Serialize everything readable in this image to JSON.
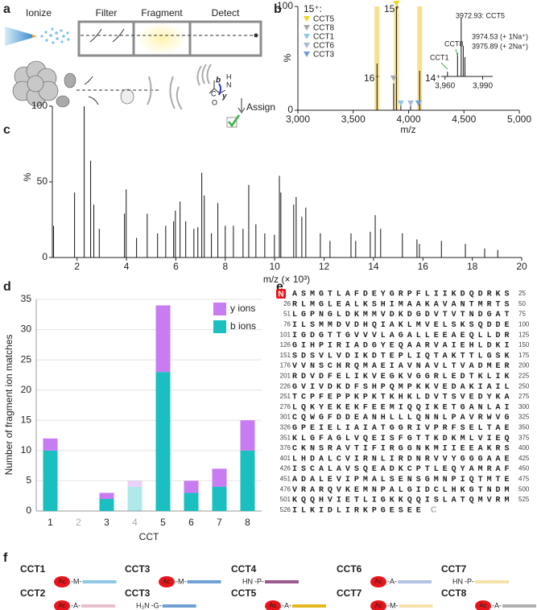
{
  "panel_labels": [
    "a",
    "b",
    "c",
    "d",
    "e",
    "f"
  ],
  "schematic": {
    "steps": [
      "Ionize",
      "Filter",
      "Fragment",
      "Detect"
    ],
    "assign": "Assign",
    "ion_labels": [
      "b",
      "y"
    ],
    "atoms": [
      "C",
      "O",
      "N",
      "H"
    ]
  },
  "chart_data": [
    {
      "type": "spectrum",
      "xlabel": "m/z",
      "ylabel": "%",
      "xlim": [
        3000,
        5000
      ],
      "ylim": [
        0,
        100
      ],
      "xticks": [
        {
          "value": 3000,
          "label": "3,000"
        },
        {
          "value": 3500,
          "label": "3,500"
        },
        {
          "value": 4000,
          "label": "4,000"
        },
        {
          "value": 4500,
          "label": "4,500"
        },
        {
          "value": 5000,
          "label": "5,000"
        }
      ],
      "yticks": [
        0,
        100
      ],
      "x": [
        3715,
        3865,
        3890,
        3930,
        4018,
        4100
      ],
      "values": [
        45,
        26,
        100,
        6,
        5,
        38
      ],
      "highlight_color": "#f7e08e",
      "annotations": [
        {
          "text": "16⁺",
          "x": 3715
        },
        {
          "text": "15⁺",
          "x": 3890
        },
        {
          "text": "14⁺",
          "x": 4100
        }
      ],
      "markers_title": "15⁺:",
      "series": [
        {
          "name": "CCT5",
          "color": "#f2d21a",
          "x": [
            3890
          ],
          "values": [
            100
          ]
        },
        {
          "name": "CCT8",
          "color": "#a8a8a8",
          "x": [
            3865
          ],
          "values": [
            28
          ]
        },
        {
          "name": "CCT1",
          "color": "#8ec8e6",
          "x": [
            3930
          ],
          "values": [
            4
          ]
        },
        {
          "name": "CCT6",
          "color": "#a9b8d8",
          "x": [
            4018
          ],
          "values": [
            4
          ]
        },
        {
          "name": "CCT3",
          "color": "#6fa0d4",
          "x": [
            4090
          ],
          "values": [
            4
          ]
        }
      ]
    },
    {
      "type": "spectrum",
      "xlim": [
        3957,
        3998
      ],
      "ylim": [
        0,
        100
      ],
      "xticks": [
        {
          "value": 3960,
          "label": "3,960"
        },
        {
          "value": 3990,
          "label": "3,990"
        }
      ],
      "x": [
        3962,
        3970,
        3972.93,
        3974.53,
        3975.89
      ],
      "values": [
        8,
        40,
        100,
        52,
        33
      ],
      "annotations": [
        {
          "text": "3972.93: CCT5",
          "x": 3972.93
        },
        {
          "text": "3974.53 (+ 1Na⁺)",
          "x": 3974.53
        },
        {
          "text": "3975.89 (+ 2Na⁺)",
          "x": 3975.89
        },
        {
          "text": "CCT8",
          "x": 3970
        },
        {
          "text": "CCT1",
          "x": 3962
        }
      ]
    },
    {
      "type": "spectrum",
      "xlabel": "m/z (× 10³)",
      "ylabel": "%",
      "xlim": [
        1,
        20
      ],
      "ylim": [
        0,
        100
      ],
      "xticks": [
        2,
        4,
        6,
        8,
        10,
        12,
        14,
        16,
        18,
        20
      ],
      "yticks": [
        0,
        50,
        100
      ],
      "x": [
        1.05,
        1.9,
        2.29,
        2.55,
        2.68,
        2.9,
        3.92,
        3.99,
        4.41,
        4.84,
        5.26,
        5.59,
        5.91,
        5.98,
        6.17,
        6.4,
        6.73,
        6.89,
        7.05,
        7.15,
        7.44,
        7.7,
        8.0,
        8.33,
        8.72,
        8.95,
        9.24,
        9.6,
        9.99,
        10.19,
        10.25,
        10.77,
        10.87,
        11.1,
        11.26,
        11.85,
        12.24,
        13.09,
        13.28,
        13.87,
        14.07,
        14.29,
        15.17,
        15.76,
        15.86,
        16.75,
        17.72,
        18.5,
        19.03
      ],
      "values": [
        21,
        43,
        100,
        64,
        35,
        19,
        29,
        45,
        13,
        29,
        16,
        21,
        24,
        31,
        37,
        24,
        19,
        20,
        56,
        41,
        16,
        36,
        21,
        21,
        19,
        48,
        22,
        16,
        15,
        54,
        43,
        35,
        40,
        27,
        33,
        16,
        11,
        16,
        11,
        17,
        28,
        19,
        16,
        12,
        9,
        11,
        9,
        6,
        5
      ]
    },
    {
      "type": "stacked_bar",
      "xlabel": "CCT",
      "ylabel": "Number of fragment ion matches",
      "categories": [
        "1",
        "2",
        "3",
        "4",
        "5",
        "6",
        "7",
        "8"
      ],
      "faded_categories": [
        "2",
        "4"
      ],
      "ylim": [
        0,
        35
      ],
      "yticks": [
        0,
        5,
        10,
        15,
        20,
        25,
        30,
        35
      ],
      "grid": true,
      "legend": "top-right",
      "series": [
        {
          "name": "b ions",
          "color": "#1bbfc0",
          "values": [
            10,
            0,
            2,
            4,
            23,
            3,
            4,
            10
          ]
        },
        {
          "name": "y ions",
          "color": "#c77cf2",
          "values": [
            2,
            0,
            1,
            1,
            11,
            2,
            3,
            5
          ]
        }
      ]
    }
  ],
  "sequence": {
    "n_term": "N",
    "c_term": "C",
    "rows": [
      {
        "seq": "ASMGTLAFDEYGRPFLIIKDQDRKS",
        "end": 25
      },
      {
        "start": 26,
        "seq": "RLMGLEALKSHIMAAKAVANTMRTS",
        "end": 50
      },
      {
        "start": 51,
        "seq": "LGPNGLDKMMVDKDGDVTVTNDGAT",
        "end": 75
      },
      {
        "start": 76,
        "seq": "ILSMMDVDHQIAKLMVELSKSQDDE",
        "end": 100
      },
      {
        "start": 101,
        "seq": "IGDGTTGVVVLAGALLEEAEQLLDR",
        "end": 125
      },
      {
        "start": 126,
        "seq": "GIHPIRIADGYEQAARVAIEHLDKI",
        "end": 150
      },
      {
        "start": 151,
        "seq": "SDSVLVDIKDTEPLIQTAKTTLGSK",
        "end": 175
      },
      {
        "start": 176,
        "seq": "VVNSCHRQMAEIAVNAVLTVADMER",
        "end": 200
      },
      {
        "start": 201,
        "seq": "RDVDFELIKVEGKVGGRLEDTKLIK",
        "end": 225
      },
      {
        "start": 226,
        "seq": "GVIVDKDFSHPQMPKKVEDAKIAIL",
        "end": 250
      },
      {
        "start": 251,
        "seq": "TCPFEPPKPKTKHKLDVTSVEDYKA",
        "end": 275
      },
      {
        "start": 276,
        "seq": "LQKYEKEKFEEMIQQIKETGANLAI",
        "end": 300
      },
      {
        "start": 301,
        "seq": "CQWGFDDEANHLLLQNNLPAVRWVG",
        "end": 325
      },
      {
        "start": 326,
        "seq": "GPEIELIAIATGGRIVPRFSELTAE",
        "end": 350
      },
      {
        "start": 351,
        "seq": "KLGFAGLVQEISFGTTKDKMLVIEQ",
        "end": 375
      },
      {
        "start": 376,
        "seq": "CKNSRAVTIFIRGGNKMIIEEAKRS",
        "end": 400
      },
      {
        "start": 401,
        "seq": "LHDALCVIRNLIRDNRVVYGGGAAE",
        "end": 425
      },
      {
        "start": 426,
        "seq": "ISCALAVSQEADKCPTLEQYAMRAF",
        "end": 450
      },
      {
        "start": 451,
        "seq": "ADALEVIPMALSENSGMNPIQTMTE",
        "end": 475
      },
      {
        "start": 476,
        "seq": "VRARQVKEMNPALGIDCLHKGTNDM",
        "end": 500
      },
      {
        "start": 501,
        "seq": "KQQHVIETLIGKKQQISLATQMVRM",
        "end": 525
      },
      {
        "start": 526,
        "seq": "ILKIDLIRKPGESEE"
      }
    ]
  },
  "modifications": {
    "items": [
      {
        "name": "CCT1",
        "acetyl": true,
        "cap": "Ac",
        "residue": "-M-",
        "color": "#8ec8e6"
      },
      {
        "name": "CCT3",
        "acetyl": true,
        "cap": "Ac",
        "residue": "-M-",
        "color": "#6fa0d4"
      },
      {
        "name": "CCT4",
        "acetyl": false,
        "cap": "HN",
        "residue": "-P-",
        "color": "#9a5a8e"
      },
      {
        "name": "CCT6",
        "acetyl": true,
        "cap": "Ac",
        "residue": "-A-",
        "color": "#b3c2e6"
      },
      {
        "name": "CCT7",
        "acetyl": false,
        "cap": "HN",
        "residue": "-P-",
        "color": "#f5e2a8"
      },
      {
        "name": "CCT2",
        "acetyl": true,
        "cap": "Ac",
        "residue": "-A-",
        "color": "#e8c0cc"
      },
      {
        "name": "CCT3",
        "acetyl": false,
        "cap": "H₃N",
        "residue": "-G-",
        "color": "#6fa0d4"
      },
      {
        "name": "CCT5",
        "acetyl": true,
        "cap": "Ac",
        "residue": "-A-",
        "color": "#e6b820"
      },
      {
        "name": "CCT7",
        "acetyl": true,
        "cap": "Ac",
        "residue": "-M-",
        "color": "#f5e2a8"
      },
      {
        "name": "CCT8",
        "acetyl": true,
        "cap": "Ac",
        "residue": "-A-",
        "color": "#b0b0b0"
      }
    ]
  }
}
